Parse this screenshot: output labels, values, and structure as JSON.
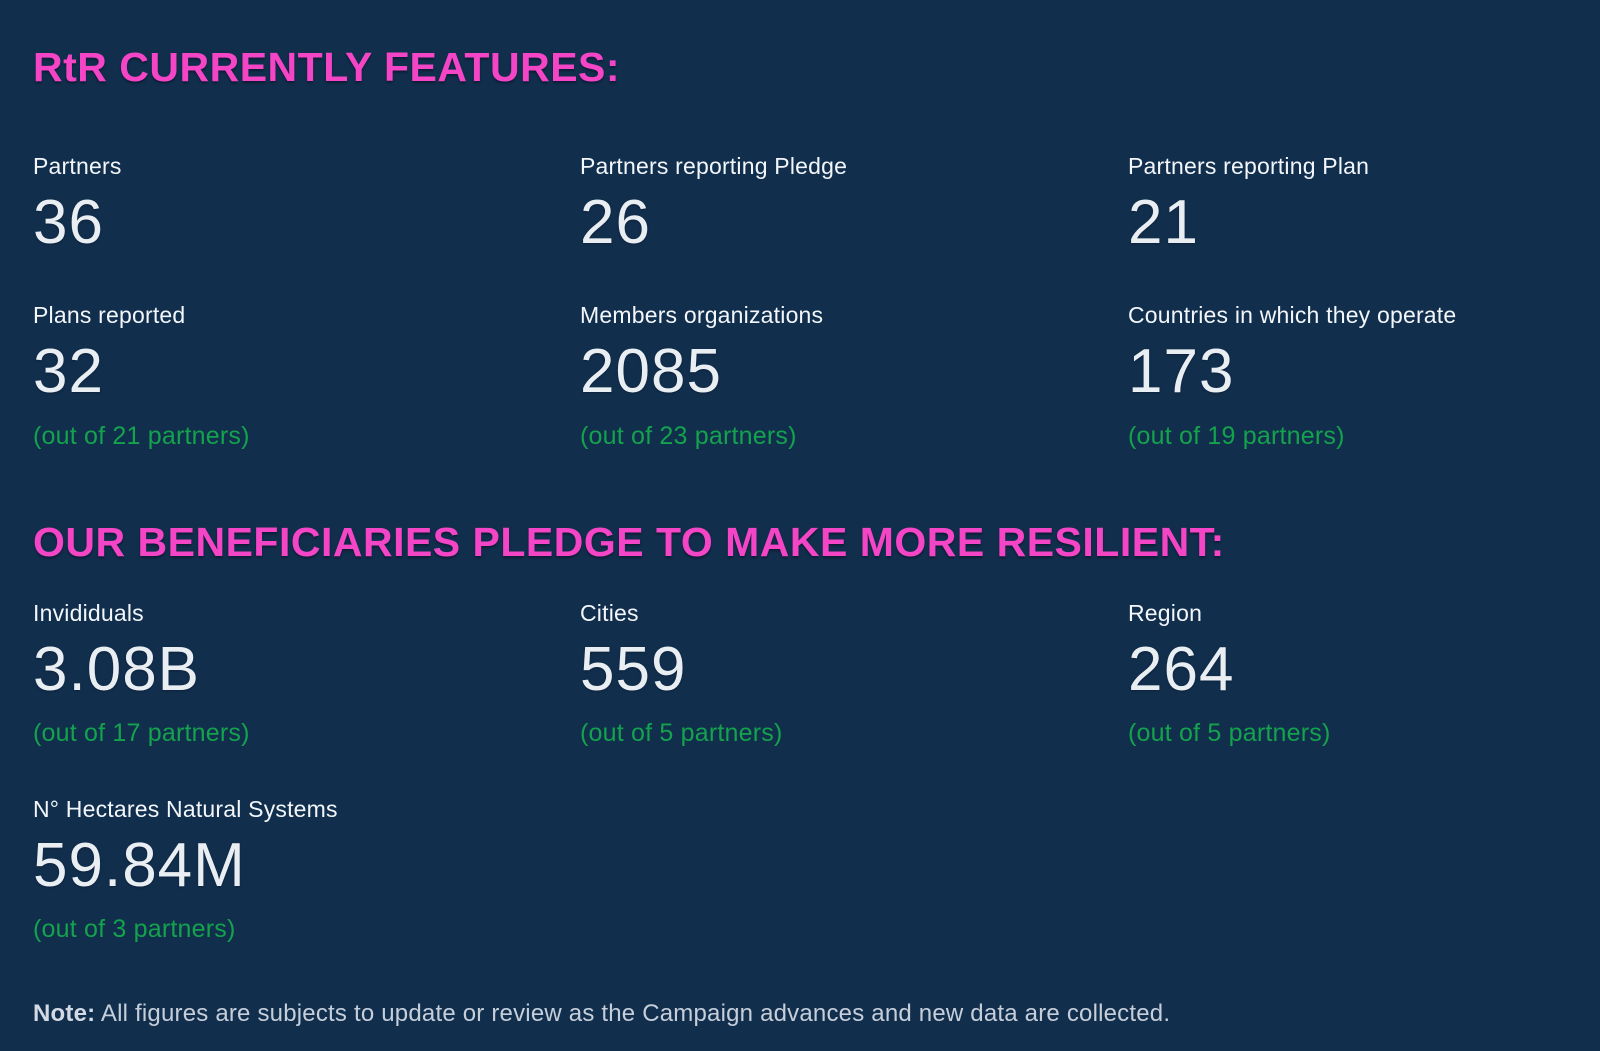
{
  "page": {
    "background": "#112F4D",
    "accent_pink": "#F345C5",
    "accent_green": "#14A24D",
    "value_color": "#E9EEF3",
    "label_color": "#F3F6FA",
    "note_color": "#C6CEDA"
  },
  "sections": [
    {
      "heading": "RtR CURRENTLY FEATURES:",
      "rows": [
        [
          {
            "label": "Partners",
            "value": "36",
            "sub": ""
          },
          {
            "label": "Partners reporting Pledge",
            "value": "26",
            "sub": ""
          },
          {
            "label": "Partners reporting Plan",
            "value": "21",
            "sub": ""
          }
        ],
        [
          {
            "label": "Plans reported",
            "value": "32",
            "sub": "(out of 21 partners)"
          },
          {
            "label": "Members organizations",
            "value": "2085",
            "sub": "(out of 23 partners)"
          },
          {
            "label": "Countries in which they operate",
            "value": "173",
            "sub": "(out of 19 partners)"
          }
        ]
      ]
    },
    {
      "heading": "OUR BENEFICIARIES PLEDGE TO MAKE MORE RESILIENT:",
      "rows": [
        [
          {
            "label": "Invididuals",
            "value": "3.08B",
            "sub": "(out of 17 partners)"
          },
          {
            "label": "Cities",
            "value": "559",
            "sub": "(out of 5 partners)"
          },
          {
            "label": "Region",
            "value": "264",
            "sub": "(out of 5 partners)"
          }
        ],
        [
          {
            "label": "N° Hectares Natural Systems",
            "value": "59.84M",
            "sub": "(out of 3 partners)"
          }
        ]
      ]
    }
  ],
  "note": {
    "prefix": "Note:",
    "text": " All figures are subjects to update or review as the Campaign advances and new data are collected."
  }
}
